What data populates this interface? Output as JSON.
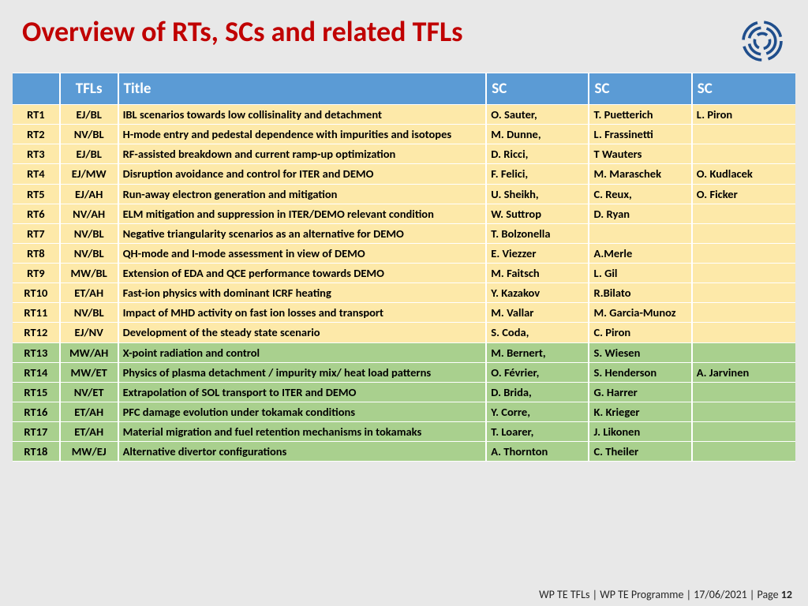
{
  "title": "Overview of RTs, SCs and related TFLs",
  "colors": {
    "title": "#c00000",
    "header_bg": "#5b9bd5",
    "header_fg": "#ffffff",
    "row_yellow": "#fde9a9",
    "row_green": "#a9d08e",
    "page_bg": "#e8e8e8",
    "logo": "#1f4e8c"
  },
  "columns": [
    "",
    "TFLs",
    "Title",
    " SC",
    "SC",
    "SC"
  ],
  "rows": [
    {
      "rt": "RT1",
      "tfl": "EJ/BL",
      "title": "IBL scenarios towards low collisinality and detachment",
      "sc1": "O. Sauter,",
      "sc2": "T. Puetterich",
      "sc3": "L. Piron",
      "band": "yellow"
    },
    {
      "rt": "RT2",
      "tfl": "NV/BL",
      "title": "H-mode entry and pedestal dependence with impurities and isotopes",
      "sc1": "M. Dunne,",
      "sc2": "L. Frassinetti",
      "sc3": "",
      "band": "yellow"
    },
    {
      "rt": "RT3",
      "tfl": "EJ/BL",
      "title": "RF-assisted breakdown and current ramp-up optimization",
      "sc1": "D. Ricci,",
      "sc2": "T Wauters",
      "sc3": "",
      "band": "yellow"
    },
    {
      "rt": "RT4",
      "tfl": "EJ/MW",
      "title": "Disruption avoidance and control for ITER and DEMO",
      "sc1": "F. Felici,",
      "sc2": "M. Maraschek",
      "sc3": "O. Kudlacek",
      "band": "yellow"
    },
    {
      "rt": "RT5",
      "tfl": "EJ/AH",
      "title": "Run-away electron generation and mitigation",
      "sc1": "U. Sheikh,",
      "sc2": "C. Reux,",
      "sc3": "O. Ficker",
      "band": "yellow"
    },
    {
      "rt": "RT6",
      "tfl": "NV/AH",
      "title": "ELM mitigation and suppression in ITER/DEMO relevant condition",
      "sc1": "W. Suttrop",
      "sc2": "D. Ryan",
      "sc3": "",
      "band": "yellow"
    },
    {
      "rt": "RT7",
      "tfl": "NV/BL",
      "title": "Negative triangularity scenarios as an alternative for DEMO",
      "sc1": "T. Bolzonella",
      "sc2": "",
      "sc3": "",
      "band": "yellow"
    },
    {
      "rt": "RT8",
      "tfl": "NV/BL",
      "title": "QH-mode and I-mode assessment in view of DEMO",
      "sc1": "E. Viezzer",
      "sc2": "A.Merle",
      "sc3": "",
      "band": "yellow"
    },
    {
      "rt": "RT9",
      "tfl": "MW/BL",
      "title": "Extension of EDA and QCE performance towards DEMO",
      "sc1": "M. Faitsch",
      "sc2": "L. Gil",
      "sc3": "",
      "band": "yellow"
    },
    {
      "rt": "RT10",
      "tfl": "ET/AH",
      "title": "Fast-ion physics with dominant ICRF heating",
      "sc1": "Y. Kazakov",
      "sc2": "R.Bilato",
      "sc3": "",
      "band": "yellow"
    },
    {
      "rt": "RT11",
      "tfl": "NV/BL",
      "title": "Impact of MHD activity on fast ion losses and transport",
      "sc1": "M. Vallar",
      "sc2": "M. Garcia-Munoz",
      "sc3": "",
      "band": "yellow"
    },
    {
      "rt": "RT12",
      "tfl": "EJ/NV",
      "title": "Development of the steady state scenario",
      "sc1": "S. Coda,",
      "sc2": "C. Piron",
      "sc3": "",
      "band": "yellow"
    },
    {
      "rt": "RT13",
      "tfl": "MW/AH",
      "title": "X-point radiation and  control",
      "sc1": "M. Bernert,",
      "sc2": "S. Wiesen",
      "sc3": "",
      "band": "green"
    },
    {
      "rt": "RT14",
      "tfl": "MW/ET",
      "title": "Physics of plasma detachment / impurity mix/ heat load patterns",
      "sc1": "O. Février,",
      "sc2": "S. Henderson",
      "sc3": "A. Jarvinen",
      "band": "green"
    },
    {
      "rt": "RT15",
      "tfl": "NV/ET",
      "title": "Extrapolation of SOL transport to ITER and DEMO",
      "sc1": "D. Brida,",
      "sc2": " G. Harrer",
      "sc3": "",
      "band": "green"
    },
    {
      "rt": "RT16",
      "tfl": "ET/AH",
      "title": " PFC damage evolution under tokamak conditions",
      "sc1": "Y. Corre,",
      "sc2": "K. Krieger",
      "sc3": "",
      "band": "green"
    },
    {
      "rt": "RT17",
      "tfl": "ET/AH",
      "title": "Material migration and fuel retention mechanisms in tokamaks",
      "sc1": "T. Loarer,",
      "sc2": "J. Likonen",
      "sc3": "",
      "band": "green"
    },
    {
      "rt": "RT18",
      "tfl": "MW/EJ",
      "title": "Alternative divertor configurations",
      "sc1": "A. Thornton",
      "sc2": "C. Theiler",
      "sc3": "",
      "band": "green"
    }
  ],
  "footer": {
    "left": "WP TE TFLs |  WP TE Programme | 17/06/2021 | Page ",
    "page": "12"
  }
}
